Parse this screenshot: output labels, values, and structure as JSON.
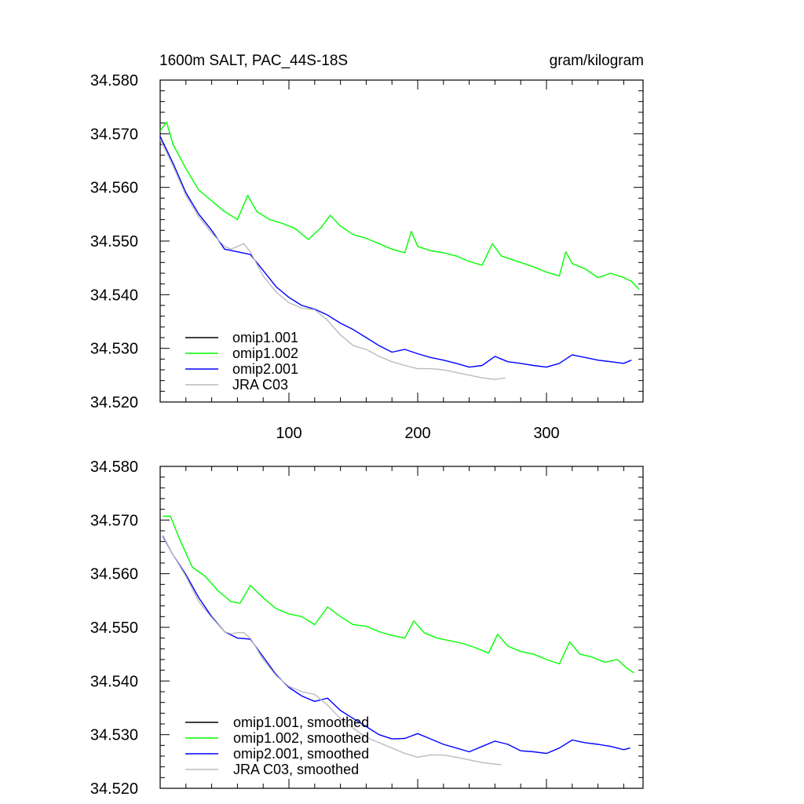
{
  "chart_data": [
    {
      "type": "line",
      "title": "1600m SALT, PAC_44S-18S",
      "units": "gram/kilogram",
      "xlim": [
        0,
        375
      ],
      "ylim": [
        34.52,
        34.58
      ],
      "yticks": [
        "34.520",
        "34.530",
        "34.540",
        "34.550",
        "34.560",
        "34.570",
        "34.580"
      ],
      "xticks": [
        "100",
        "200",
        "300"
      ],
      "legend": [
        "omip1.001",
        "omip1.002",
        "omip2.001",
        "JRA C03"
      ],
      "series": [
        {
          "name": "omip1.001",
          "color": "#000000",
          "x": [],
          "values": []
        },
        {
          "name": "omip1.002",
          "color": "#00ff00",
          "x": [
            0,
            5,
            10,
            20,
            30,
            40,
            50,
            60,
            68,
            75,
            85,
            95,
            105,
            115,
            125,
            132,
            140,
            150,
            160,
            170,
            180,
            190,
            195,
            200,
            210,
            220,
            230,
            240,
            250,
            258,
            265,
            280,
            290,
            300,
            310,
            315,
            320,
            330,
            340,
            350,
            360,
            366,
            372
          ],
          "values": [
            34.5705,
            34.5722,
            34.568,
            34.5635,
            34.5595,
            34.5575,
            34.5555,
            34.554,
            34.5585,
            34.5555,
            34.554,
            34.5533,
            34.5523,
            34.5503,
            34.5525,
            34.5548,
            34.5528,
            34.5512,
            34.5505,
            34.5495,
            34.5485,
            34.5478,
            34.5518,
            34.549,
            34.5482,
            34.5478,
            34.5472,
            34.5462,
            34.5455,
            34.5495,
            34.5472,
            34.546,
            34.5452,
            34.5442,
            34.5435,
            34.548,
            34.5458,
            34.5448,
            34.5432,
            34.544,
            34.5432,
            34.5425,
            34.541
          ]
        },
        {
          "name": "omip2.001",
          "color": "#0000ff",
          "x": [
            0,
            10,
            20,
            30,
            40,
            50,
            60,
            70,
            80,
            90,
            100,
            110,
            120,
            130,
            140,
            150,
            160,
            170,
            180,
            190,
            200,
            210,
            220,
            230,
            240,
            250,
            260,
            270,
            280,
            290,
            300,
            310,
            320,
            330,
            340,
            350,
            360,
            366
          ],
          "values": [
            34.5695,
            34.5645,
            34.559,
            34.555,
            34.552,
            34.5485,
            34.548,
            34.5475,
            34.5445,
            34.5415,
            34.5395,
            34.538,
            34.5373,
            34.5362,
            34.5347,
            34.5335,
            34.532,
            34.5305,
            34.5293,
            34.5298,
            34.529,
            34.5283,
            34.5278,
            34.5272,
            34.5265,
            34.5268,
            34.5285,
            34.5275,
            34.5272,
            34.5268,
            34.5265,
            34.5272,
            34.5288,
            34.5283,
            34.5278,
            34.5275,
            34.5272,
            34.5278
          ]
        },
        {
          "name": "JRA C03",
          "color": "#bbbbbb",
          "x": [
            0,
            10,
            20,
            30,
            40,
            50,
            55,
            60,
            65,
            70,
            80,
            90,
            100,
            110,
            120,
            130,
            140,
            150,
            160,
            170,
            180,
            190,
            200,
            210,
            220,
            230,
            240,
            250,
            260,
            268
          ],
          "values": [
            34.569,
            34.564,
            34.5585,
            34.5545,
            34.5515,
            34.549,
            34.5485,
            34.549,
            34.5495,
            34.548,
            34.5435,
            34.5405,
            34.5385,
            34.5375,
            34.5372,
            34.5352,
            34.5325,
            34.5305,
            34.5298,
            34.5285,
            34.5275,
            34.5268,
            34.5262,
            34.5262,
            34.526,
            34.5255,
            34.525,
            34.5245,
            34.5242,
            34.5245
          ]
        }
      ]
    },
    {
      "type": "line",
      "ylim": [
        34.52,
        34.58
      ],
      "xlim": [
        0,
        375
      ],
      "yticks": [
        "34.520",
        "34.530",
        "34.540",
        "34.550",
        "34.560",
        "34.570",
        "34.580"
      ],
      "legend": [
        "omip1.001, smoothed",
        "omip1.002, smoothed",
        "omip2.001, smoothed",
        "JRA C03, smoothed"
      ],
      "series": [
        {
          "name": "omip1.001, smoothed",
          "color": "#000000",
          "x": [],
          "values": []
        },
        {
          "name": "omip1.002, smoothed",
          "color": "#00ff00",
          "x": [
            2,
            8,
            15,
            25,
            35,
            45,
            55,
            62,
            70,
            80,
            90,
            100,
            110,
            120,
            130,
            140,
            150,
            160,
            170,
            180,
            190,
            197,
            205,
            215,
            225,
            235,
            245,
            255,
            262,
            270,
            280,
            290,
            300,
            310,
            318,
            326,
            335,
            345,
            355,
            362,
            368
          ],
          "values": [
            34.5707,
            34.5707,
            34.5665,
            34.5612,
            34.5595,
            34.5568,
            34.5548,
            34.5545,
            34.5578,
            34.5555,
            34.5535,
            34.5525,
            34.552,
            34.5505,
            34.5538,
            34.552,
            34.5505,
            34.5502,
            34.5492,
            34.5485,
            34.548,
            34.5512,
            34.549,
            34.548,
            34.5475,
            34.547,
            34.5462,
            34.5452,
            34.5487,
            34.5465,
            34.5455,
            34.545,
            34.544,
            34.5432,
            34.5473,
            34.545,
            34.5445,
            34.5435,
            34.544,
            34.5425,
            34.5415
          ]
        },
        {
          "name": "omip2.001, smoothed",
          "color": "#0000ff",
          "x": [
            2,
            10,
            20,
            30,
            40,
            50,
            60,
            70,
            80,
            90,
            100,
            110,
            120,
            130,
            140,
            150,
            160,
            170,
            180,
            190,
            200,
            210,
            220,
            230,
            240,
            250,
            260,
            270,
            280,
            290,
            300,
            310,
            320,
            330,
            340,
            350,
            360,
            365
          ],
          "values": [
            34.567,
            34.5635,
            34.5598,
            34.5555,
            34.552,
            34.5492,
            34.548,
            34.5478,
            34.5445,
            34.5412,
            34.5388,
            34.5372,
            34.5362,
            34.5368,
            34.5345,
            34.533,
            34.5315,
            34.53,
            34.5292,
            34.5293,
            34.5302,
            34.5292,
            34.5282,
            34.5275,
            34.5268,
            34.5278,
            34.5288,
            34.5282,
            34.527,
            34.5268,
            34.5265,
            34.5275,
            34.529,
            34.5285,
            34.5282,
            34.5278,
            34.5272,
            34.5275
          ]
        },
        {
          "name": "JRA C03, smoothed",
          "color": "#bbbbbb",
          "x": [
            2,
            10,
            20,
            30,
            40,
            50,
            55,
            60,
            65,
            70,
            80,
            90,
            100,
            110,
            120,
            130,
            140,
            150,
            160,
            170,
            180,
            190,
            200,
            210,
            220,
            230,
            240,
            250,
            260,
            265
          ],
          "values": [
            34.5672,
            34.5635,
            34.5595,
            34.5548,
            34.5518,
            34.5492,
            34.5488,
            34.549,
            34.549,
            34.548,
            34.544,
            34.541,
            34.539,
            34.538,
            34.5375,
            34.5355,
            34.533,
            34.5312,
            34.5295,
            34.5285,
            34.5275,
            34.5265,
            34.5258,
            34.5262,
            34.5262,
            34.5258,
            34.5253,
            34.5248,
            34.5245,
            34.5244
          ]
        }
      ]
    }
  ]
}
